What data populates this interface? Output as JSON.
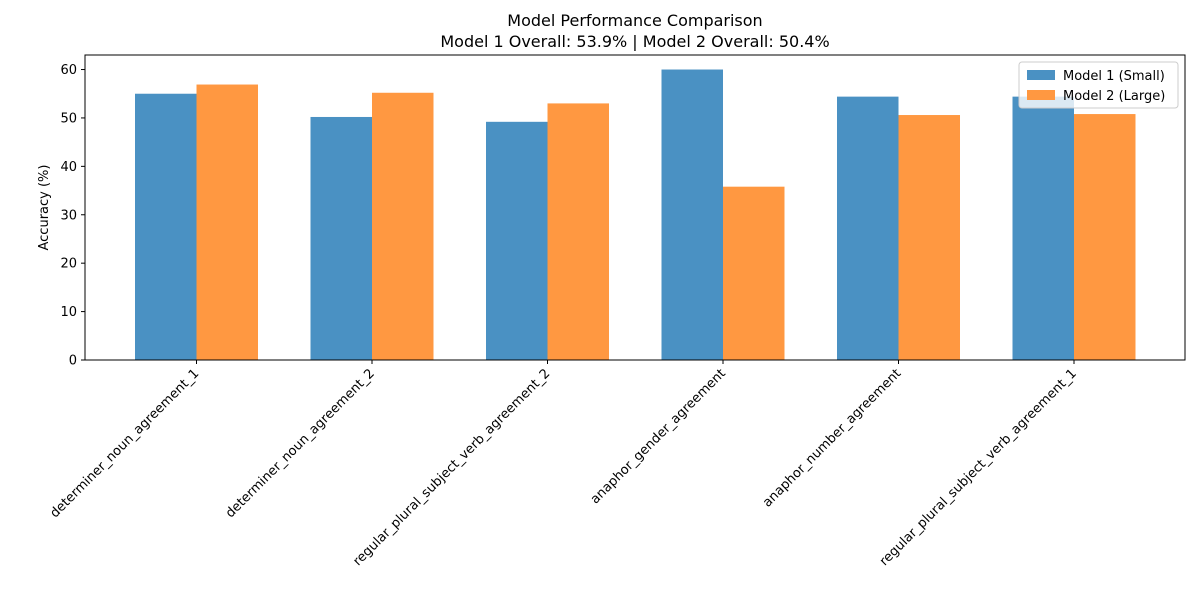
{
  "chart_data": {
    "type": "bar",
    "title": "Model Performance Comparison",
    "subtitle": "Model 1 Overall: 53.9% | Model 2 Overall: 50.4%",
    "xlabel": "",
    "ylabel": "Accuracy (%)",
    "ylim": [
      0,
      63
    ],
    "yticks": [
      0,
      10,
      20,
      30,
      40,
      50,
      60
    ],
    "grid": false,
    "legend_position": "top-right",
    "categories": [
      "determiner_noun_agreement_1",
      "determiner_noun_agreement_2",
      "regular_plural_subject_verb_agreement_2",
      "anaphor_gender_agreement",
      "anaphor_number_agreement",
      "regular_plural_subject_verb_agreement_1"
    ],
    "series": [
      {
        "name": "Model 1 (Small)",
        "color": "#4a91c3",
        "values": [
          55.0,
          50.2,
          49.2,
          60.0,
          54.4,
          54.4
        ]
      },
      {
        "name": "Model 2 (Large)",
        "color": "#ff9841",
        "values": [
          56.9,
          55.2,
          53.0,
          35.8,
          50.6,
          50.8
        ]
      }
    ]
  }
}
